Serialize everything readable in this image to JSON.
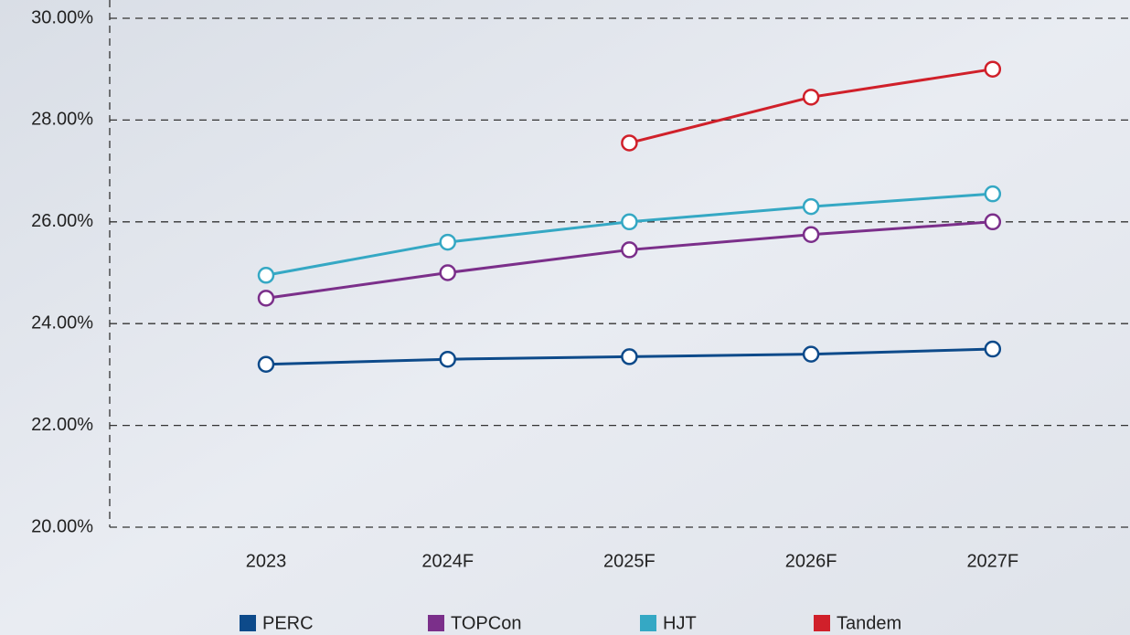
{
  "chart_data": {
    "type": "line",
    "categories": [
      "2023",
      "2024F",
      "2025F",
      "2026F",
      "2027F"
    ],
    "series": [
      {
        "name": "PERC",
        "color": "#0d4a8a",
        "values": [
          23.2,
          23.3,
          23.35,
          23.4,
          23.5
        ]
      },
      {
        "name": "TOPCon",
        "color": "#7b2f8a",
        "values": [
          24.5,
          25.0,
          25.45,
          25.75,
          26.0
        ]
      },
      {
        "name": "HJT",
        "color": "#35a8c4",
        "values": [
          24.95,
          25.6,
          26.0,
          26.3,
          26.55
        ]
      },
      {
        "name": "Tandem",
        "color": "#d0202a",
        "values": [
          null,
          null,
          27.55,
          28.45,
          29.0
        ]
      }
    ],
    "ylim": [
      20,
      30
    ],
    "yticks": [
      {
        "value": 20,
        "label": "20.00%"
      },
      {
        "value": 22,
        "label": "22.00%"
      },
      {
        "value": 24,
        "label": "24.00%"
      },
      {
        "value": 26,
        "label": "26.00%"
      },
      {
        "value": 28,
        "label": "28.00%"
      },
      {
        "value": 30,
        "label": "30.00%"
      }
    ],
    "grid": true,
    "legend": "bottom"
  }
}
